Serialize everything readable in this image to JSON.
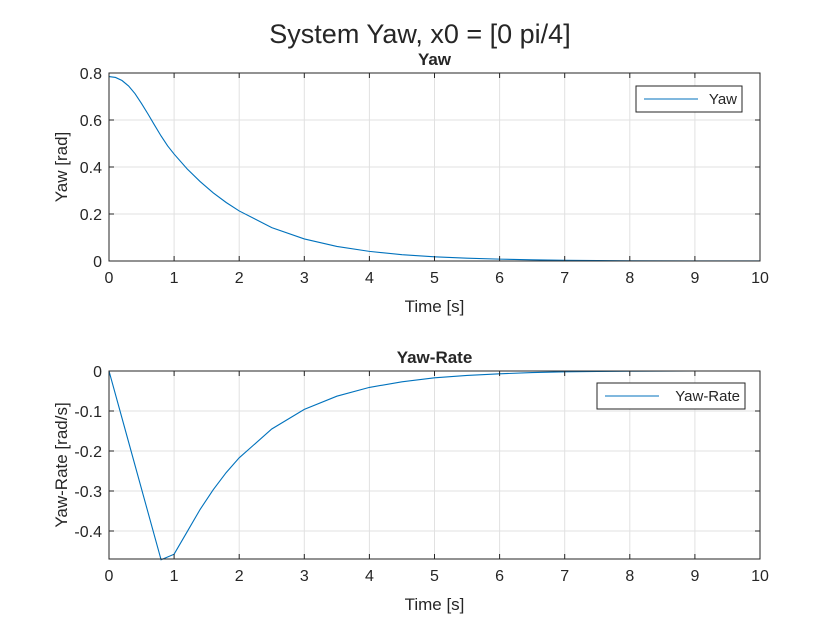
{
  "figure": {
    "title": "System Yaw, x0 = [0 pi/4]"
  },
  "chart_data": [
    {
      "type": "line",
      "title": "Yaw",
      "xlabel": "Time [s]",
      "ylabel": "Yaw [rad]",
      "xlim": [
        0,
        10
      ],
      "ylim": [
        0,
        0.8
      ],
      "xticks": [
        "0",
        "1",
        "2",
        "3",
        "4",
        "5",
        "6",
        "7",
        "8",
        "9",
        "10"
      ],
      "yticks": [
        "0",
        "0.2",
        "0.4",
        "0.6",
        "0.8"
      ],
      "grid": true,
      "legend_position": "top-right",
      "series": [
        {
          "name": "Yaw",
          "color": "#0072bd",
          "x": [
            0,
            0.1,
            0.2,
            0.3,
            0.4,
            0.5,
            0.6,
            0.7,
            0.8,
            0.9,
            1.0,
            1.2,
            1.4,
            1.6,
            1.8,
            2.0,
            2.5,
            3.0,
            3.5,
            4.0,
            4.5,
            5.0,
            5.5,
            6.0,
            6.5,
            7.0,
            7.5,
            8.0,
            9.0,
            10.0
          ],
          "y": [
            0.785,
            0.781,
            0.768,
            0.745,
            0.712,
            0.67,
            0.625,
            0.578,
            0.532,
            0.49,
            0.455,
            0.392,
            0.338,
            0.29,
            0.249,
            0.213,
            0.142,
            0.094,
            0.062,
            0.041,
            0.027,
            0.018,
            0.012,
            0.008,
            0.005,
            0.003,
            0.002,
            0.001,
            0.0005,
            0.0002
          ]
        }
      ]
    },
    {
      "type": "line",
      "title": "Yaw-Rate",
      "xlabel": "Time [s]",
      "ylabel": "Yaw-Rate [rad/s]",
      "xlim": [
        0,
        10
      ],
      "ylim": [
        -0.47,
        0
      ],
      "xticks": [
        "0",
        "1",
        "2",
        "3",
        "4",
        "5",
        "6",
        "7",
        "8",
        "9",
        "10"
      ],
      "yticks": [
        "0",
        "-0.1",
        "-0.2",
        "-0.3",
        "-0.4"
      ],
      "grid": true,
      "legend_position": "top-right",
      "series": [
        {
          "name": "Yaw-Rate",
          "color": "#0072bd",
          "x": [
            0,
            0.8,
            1.0,
            1.2,
            1.4,
            1.6,
            1.8,
            2.0,
            2.5,
            3.0,
            3.5,
            4.0,
            4.5,
            5.0,
            5.5,
            6.0,
            6.5,
            7.0,
            7.5,
            8.0,
            9.0,
            10.0
          ],
          "y": [
            0,
            -0.472,
            -0.458,
            -0.402,
            -0.346,
            -0.297,
            -0.254,
            -0.217,
            -0.145,
            -0.096,
            -0.063,
            -0.041,
            -0.027,
            -0.017,
            -0.011,
            -0.007,
            -0.004,
            -0.002,
            -0.001,
            -0.0005,
            0.0,
            0.0
          ]
        }
      ]
    }
  ]
}
